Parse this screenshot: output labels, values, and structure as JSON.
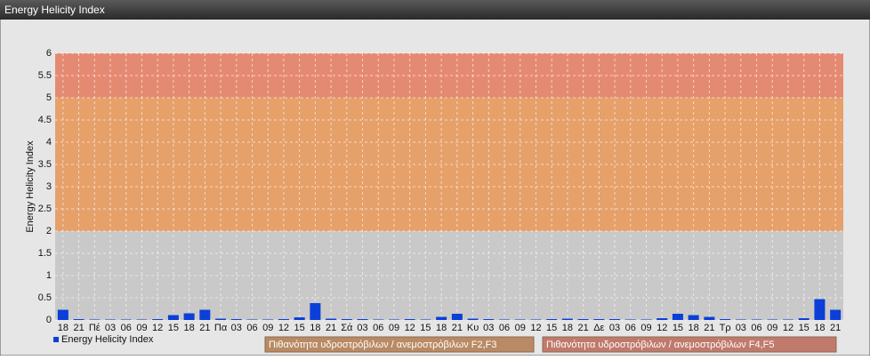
{
  "chart_data": {
    "type": "bar",
    "title": "Energy Helicity Index",
    "y_label": "Energy Helicity Index",
    "categories": [
      "18",
      "21",
      "Πέ",
      "03",
      "06",
      "09",
      "12",
      "15",
      "18",
      "21",
      "Πα",
      "03",
      "06",
      "09",
      "12",
      "15",
      "18",
      "21",
      "Σά",
      "03",
      "06",
      "09",
      "12",
      "15",
      "18",
      "21",
      "Κυ",
      "03",
      "06",
      "09",
      "12",
      "15",
      "18",
      "21",
      "Δε",
      "03",
      "06",
      "09",
      "12",
      "15",
      "18",
      "21",
      "Τρ",
      "03",
      "06",
      "09",
      "12",
      "15",
      "18",
      "21"
    ],
    "series": [
      {
        "name": "Energy Helicity Index",
        "color": "#0b3fd8",
        "values": [
          0.23,
          0.02,
          0.01,
          0.01,
          0.01,
          0.01,
          0.02,
          0.11,
          0.15,
          0.23,
          0.03,
          0.02,
          0.01,
          0.01,
          0.02,
          0.06,
          0.38,
          0.03,
          0.02,
          0.02,
          0.01,
          0.01,
          0.02,
          0.01,
          0.07,
          0.14,
          0.03,
          0.02,
          0.01,
          0.01,
          0.01,
          0.02,
          0.03,
          0.02,
          0.02,
          0.02,
          0.01,
          0.01,
          0.04,
          0.14,
          0.11,
          0.07,
          0.02,
          0.01,
          0.01,
          0.01,
          0.01,
          0.04,
          0.47,
          0.23
        ]
      }
    ],
    "bands": [
      {
        "name": "Πιθανότητα υδροστρόβιλων / ανεμοστρόβιλων F2,F3",
        "from": 2,
        "to": 5,
        "color": "#e6a06a",
        "legend_color": "#b98a63"
      },
      {
        "name": "Πιθανότητα υδροστρόβιλων / ανεμοστρόβιλων F4,F5",
        "from": 5,
        "to": 6,
        "color": "#e58a72",
        "legend_color": "#c07a6c"
      }
    ],
    "ylim": [
      0,
      6
    ],
    "yticks": [
      0,
      0.5,
      1,
      1.5,
      2,
      2.5,
      3,
      3.5,
      4,
      4.5,
      5,
      5.5,
      6
    ],
    "grid": true
  }
}
